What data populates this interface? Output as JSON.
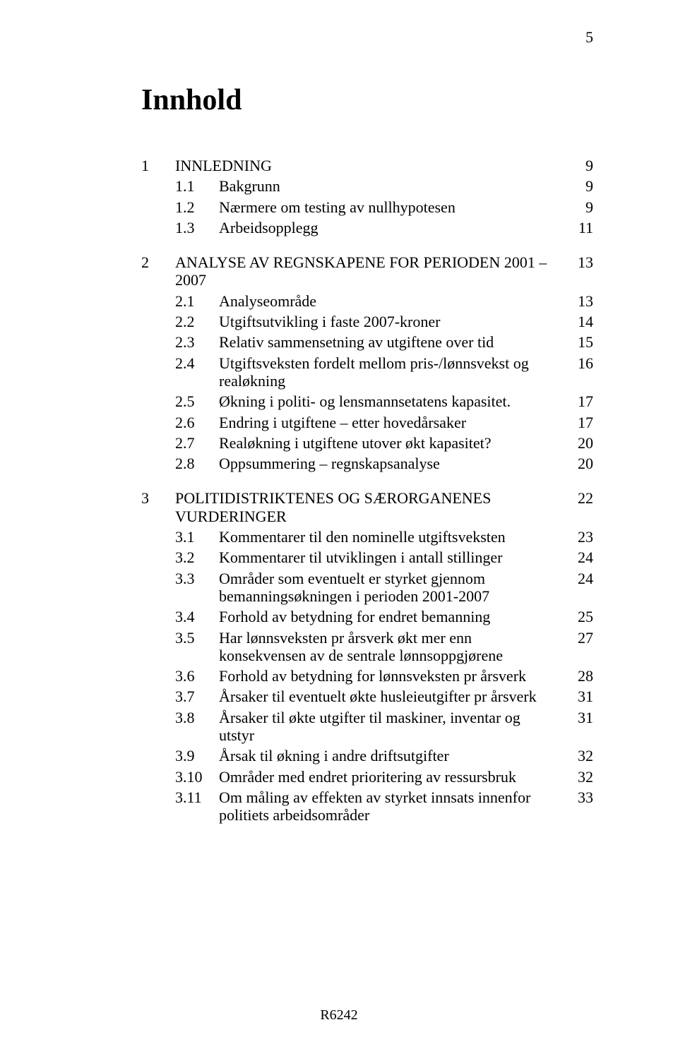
{
  "page_number_top": "5",
  "title": "Innhold",
  "footer": "R6242",
  "toc": [
    {
      "num": "1",
      "label": "INNLEDNING",
      "page": "9",
      "subs": [
        {
          "num": "1.1",
          "label": "Bakgrunn",
          "page": "9"
        },
        {
          "num": "1.2",
          "label": "Nærmere om testing av nullhypotesen",
          "page": "9"
        },
        {
          "num": "1.3",
          "label": "Arbeidsopplegg",
          "page": "11"
        }
      ]
    },
    {
      "num": "2",
      "label": "ANALYSE AV REGNSKAPENE FOR PERIODEN 2001 – 2007",
      "page": "13",
      "subs": [
        {
          "num": "2.1",
          "label": "Analyseområde",
          "page": "13"
        },
        {
          "num": "2.2",
          "label": "Utgiftsutvikling i faste 2007-kroner",
          "page": "14"
        },
        {
          "num": "2.3",
          "label": "Relativ sammensetning av utgiftene over tid",
          "page": "15"
        },
        {
          "num": "2.4",
          "label": "Utgiftsveksten fordelt mellom pris-/lønnsvekst og realøkning",
          "page": "16"
        },
        {
          "num": "2.5",
          "label": "Økning i politi- og lensmannsetatens kapasitet.",
          "page": "17"
        },
        {
          "num": "2.6",
          "label": "Endring i utgiftene – etter hovedårsaker",
          "page": "17"
        },
        {
          "num": "2.7",
          "label": "Realøkning i utgiftene utover økt kapasitet?",
          "page": "20"
        },
        {
          "num": "2.8",
          "label": "Oppsummering – regnskapsanalyse",
          "page": "20"
        }
      ]
    },
    {
      "num": "3",
      "label": "POLITIDISTRIKTENES OG SÆRORGANENES VURDERINGER",
      "page": "22",
      "subs": [
        {
          "num": "3.1",
          "label": "Kommentarer til den nominelle utgiftsveksten",
          "page": "23"
        },
        {
          "num": "3.2",
          "label": "Kommentarer til utviklingen i antall stillinger",
          "page": "24"
        },
        {
          "num": "3.3",
          "label": "Områder som eventuelt er styrket gjennom bemanningsøkningen i perioden 2001-2007",
          "page": "24"
        },
        {
          "num": "3.4",
          "label": "Forhold av betydning for endret bemanning",
          "page": "25"
        },
        {
          "num": "3.5",
          "label": "Har lønnsveksten pr årsverk økt mer enn konsekvensen av de sentrale lønnsoppgjørene",
          "page": "27"
        },
        {
          "num": "3.6",
          "label": "Forhold av betydning for lønnsveksten pr årsverk",
          "page": "28"
        },
        {
          "num": "3.7",
          "label": "Årsaker til eventuelt økte husleieutgifter pr årsverk",
          "page": "31"
        },
        {
          "num": "3.8",
          "label": "Årsaker til økte utgifter til maskiner, inventar og utstyr",
          "page": "31"
        },
        {
          "num": "3.9",
          "label": "Årsak til økning i andre driftsutgifter",
          "page": "32"
        },
        {
          "num": "3.10",
          "label": "Områder med endret prioritering av ressursbruk",
          "page": "32"
        },
        {
          "num": "3.11",
          "label": "Om måling av effekten av styrket innsats innenfor politiets arbeidsområder",
          "page": "33"
        }
      ]
    }
  ]
}
